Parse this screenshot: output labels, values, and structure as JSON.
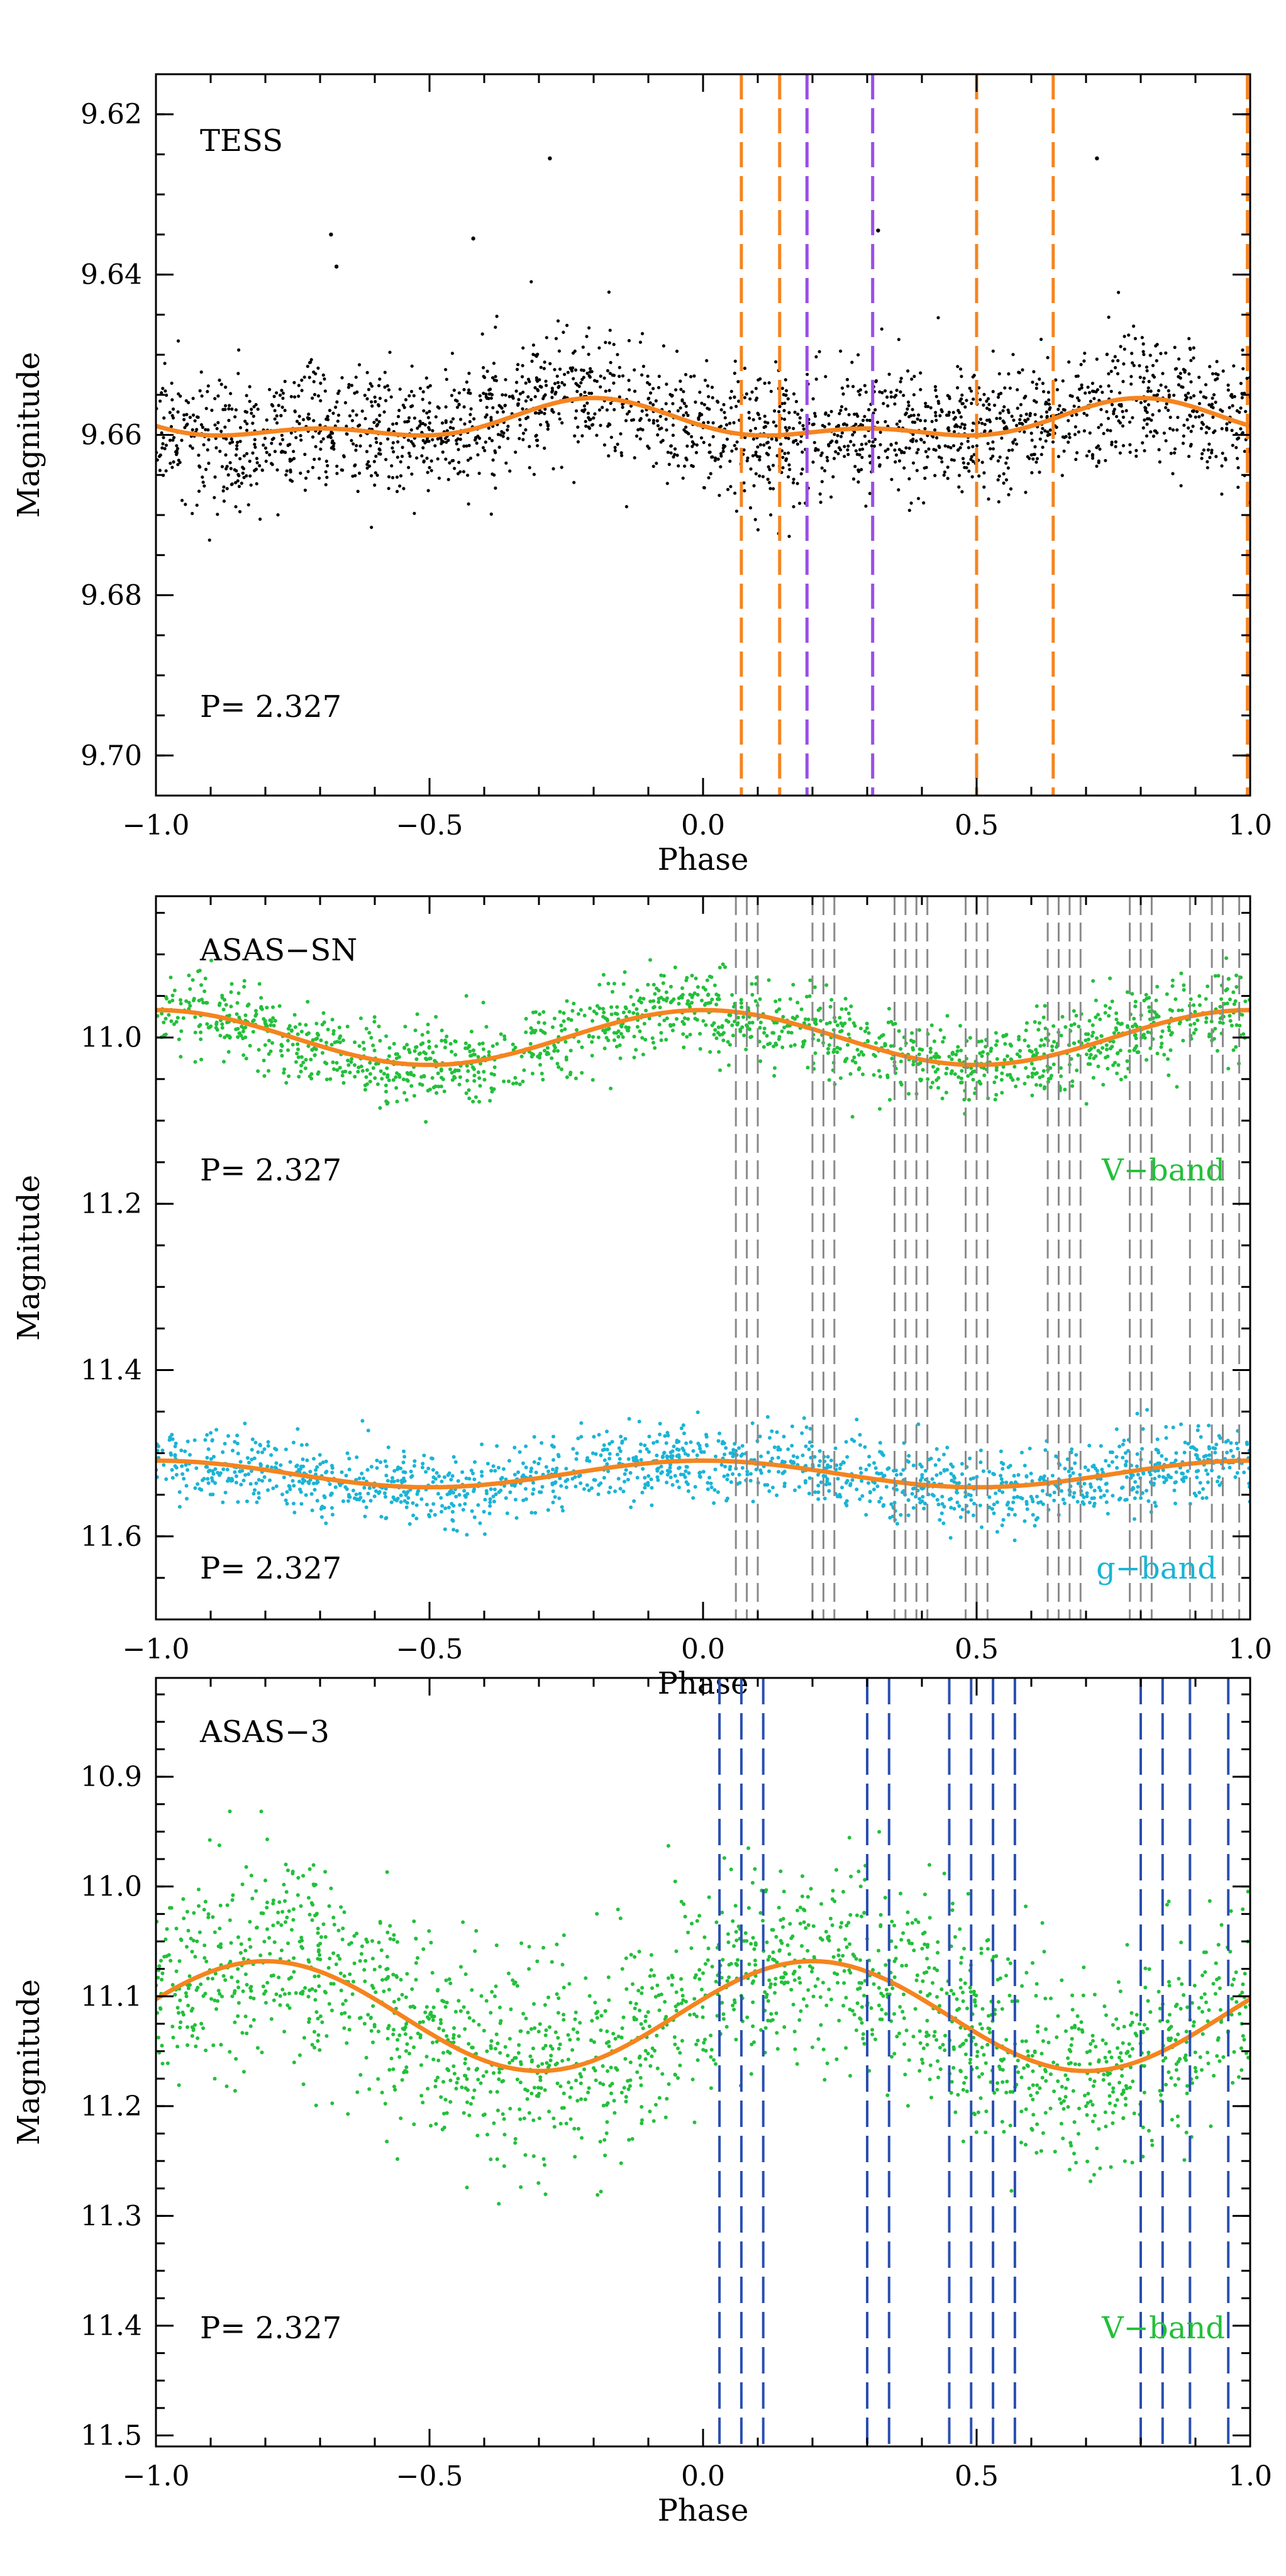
{
  "chart_data": [
    {
      "type": "scatter",
      "panel_label": "TESS",
      "period_text": "P= 2.327",
      "xlabel": "Phase",
      "ylabel": "Magnitude",
      "xlim": [
        -1.0,
        1.0
      ],
      "ylim": [
        9.705,
        9.615
      ],
      "y_inverted": true,
      "x_ticks": [
        -1.0,
        -0.5,
        0.0,
        0.5,
        1.0
      ],
      "x_tick_labels": [
        "−1.0",
        "−0.5",
        "0.0",
        "0.5",
        "1.0"
      ],
      "y_ticks": [
        9.62,
        9.64,
        9.66,
        9.68,
        9.7
      ],
      "y_tick_labels": [
        "9.62",
        "9.64",
        "9.66",
        "9.68",
        "9.70"
      ],
      "grid": false,
      "series": [
        {
          "kind": "points",
          "color": "#000000",
          "description_points": "dense black photometry, about 2000 points",
          "center_curve": {
            "mean": 9.6585,
            "harmonics": [
              {
                "n": 1,
                "amp": 0.0019,
                "phase_of_max": 0.8
              },
              {
                "n": 2,
                "amp": 0.0012,
                "phase_of_max": 0.3
              }
            ]
          },
          "scatter_sigma": 0.0035,
          "outliers": [
            [
              -0.28,
              9.6255
            ],
            [
              -0.68,
              9.635
            ],
            [
              -0.42,
              9.6355
            ],
            [
              -0.67,
              9.639
            ],
            [
              0.72,
              9.6255
            ],
            [
              0.32,
              9.6345
            ]
          ]
        },
        {
          "kind": "fit",
          "color": "#f5841f",
          "mean": 9.6585,
          "harmonics": [
            {
              "n": 1,
              "amp": 0.0019,
              "phase_of_max": 0.8
            },
            {
              "n": 2,
              "amp": 0.0012,
              "phase_of_max": 0.3
            }
          ]
        }
      ],
      "vlines": [
        {
          "x": 0.07,
          "color": "#f5841f"
        },
        {
          "x": 0.14,
          "color": "#f5841f"
        },
        {
          "x": 0.19,
          "color": "#9b4de8"
        },
        {
          "x": 0.31,
          "color": "#9b4de8"
        },
        {
          "x": 0.5,
          "color": "#f5841f"
        },
        {
          "x": 0.64,
          "color": "#f5841f"
        },
        {
          "x": 0.995,
          "color": "#f5841f"
        }
      ]
    },
    {
      "type": "scatter",
      "panel_label": "ASAS−SN",
      "period_text_top": "P= 2.327",
      "period_text_bottom": "P= 2.327",
      "band_label_top": "V−band",
      "band_label_bottom": "g−band",
      "xlabel": "Phase",
      "ylabel": "Magnitude",
      "xlim": [
        -1.0,
        1.0
      ],
      "ylim": [
        11.7,
        10.83
      ],
      "y_inverted": true,
      "x_ticks": [
        -1.0,
        -0.5,
        0.0,
        0.5,
        1.0
      ],
      "x_tick_labels": [
        "−1.0",
        "−0.5",
        "0.0",
        "0.5",
        "1.0"
      ],
      "y_ticks": [
        11.0,
        11.2,
        11.4,
        11.6
      ],
      "y_tick_labels": [
        "11.0",
        "11.2",
        "11.4",
        "11.6"
      ],
      "grid": false,
      "series": [
        {
          "name": "V−band",
          "kind": "points",
          "color": "#22c03a",
          "center_curve": {
            "mean": 11.0,
            "harmonics": [
              {
                "n": 1,
                "amp": 0.033,
                "phase_of_max": 0.0
              }
            ]
          },
          "scatter_sigma": 0.025
        },
        {
          "kind": "fit",
          "color": "#f5841f",
          "mean": 11.0,
          "harmonics": [
            {
              "n": 1,
              "amp": 0.033,
              "phase_of_max": 0.0
            }
          ]
        },
        {
          "name": "g−band",
          "kind": "points",
          "color": "#1ab4d6",
          "center_curve": {
            "mean": 11.525,
            "harmonics": [
              {
                "n": 1,
                "amp": 0.016,
                "phase_of_max": 0.0
              }
            ]
          },
          "scatter_sigma": 0.022
        },
        {
          "kind": "fit",
          "color": "#f5841f",
          "mean": 11.525,
          "harmonics": [
            {
              "n": 1,
              "amp": 0.016,
              "phase_of_max": 0.0
            }
          ]
        }
      ],
      "vlines_color": "#8a8a8a",
      "vlines": [
        0.06,
        0.08,
        0.1,
        0.2,
        0.22,
        0.24,
        0.35,
        0.37,
        0.39,
        0.41,
        0.48,
        0.5,
        0.52,
        0.63,
        0.65,
        0.67,
        0.69,
        0.78,
        0.8,
        0.82,
        0.89,
        0.93,
        0.95,
        0.98,
        1.0
      ]
    },
    {
      "type": "scatter",
      "panel_label": "ASAS−3",
      "period_text": "P= 2.327",
      "band_label": "V−band",
      "xlabel": "Phase",
      "ylabel": "Magnitude",
      "xlim": [
        -1.0,
        1.0
      ],
      "ylim": [
        11.51,
        10.81
      ],
      "y_inverted": true,
      "x_ticks": [
        -1.0,
        -0.5,
        0.0,
        0.5,
        1.0
      ],
      "x_tick_labels": [
        "−1.0",
        "−0.5",
        "0.0",
        "0.5",
        "1.0"
      ],
      "y_ticks": [
        10.9,
        11.0,
        11.1,
        11.2,
        11.3,
        11.4,
        11.5
      ],
      "y_tick_labels": [
        "10.9",
        "11.0",
        "11.1",
        "11.2",
        "11.3",
        "11.4",
        "11.5"
      ],
      "grid": false,
      "series": [
        {
          "name": "V−band",
          "kind": "points",
          "color": "#22c03a",
          "center_curve": {
            "mean": 11.118,
            "harmonics": [
              {
                "n": 1,
                "amp": 0.05,
                "phase_of_max": 0.2
              }
            ]
          },
          "scatter_sigma": 0.045
        },
        {
          "kind": "fit",
          "color": "#f5841f",
          "mean": 11.118,
          "harmonics": [
            {
              "n": 1,
              "amp": 0.05,
              "phase_of_max": 0.2
            }
          ]
        }
      ],
      "vlines_color": "#2a4fb0",
      "vlines": [
        0.03,
        0.07,
        0.11,
        0.3,
        0.34,
        0.45,
        0.49,
        0.53,
        0.57,
        0.8,
        0.84,
        0.89,
        0.96
      ]
    }
  ]
}
